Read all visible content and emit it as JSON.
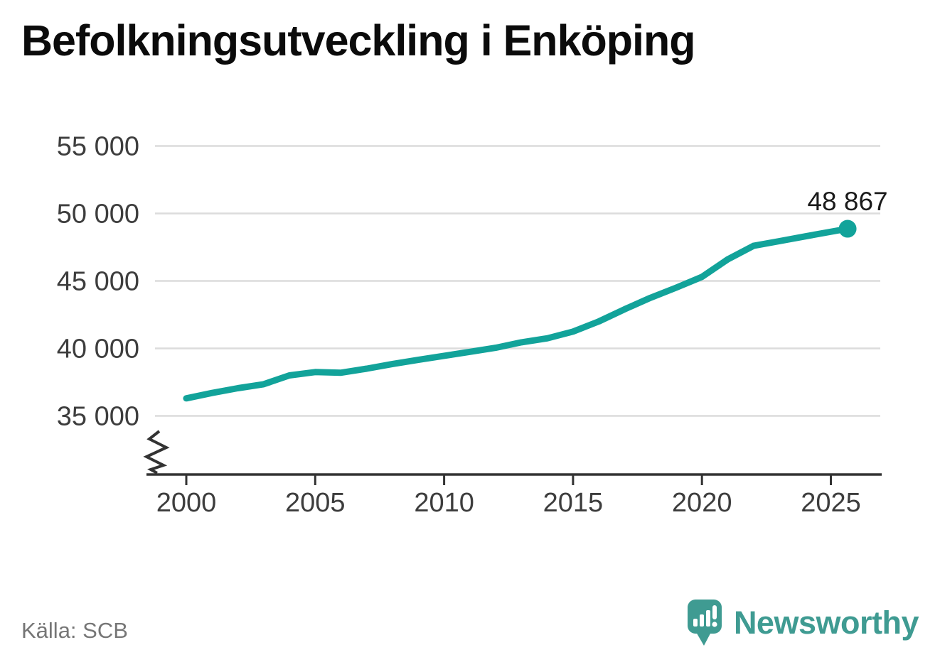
{
  "title": "Befolkningsutveckling i Enköping",
  "source": "Källa: SCB",
  "logo": {
    "text": "Newsworthy"
  },
  "colors": {
    "line": "#12a39a",
    "dot": "#12a39a",
    "logo": "#3f9b92",
    "grid": "#dcdcdc",
    "axis": "#333333",
    "tick_label": "#3d3d3d",
    "title": "#0b0b0b",
    "end_label": "#1a1a1a",
    "source_text": "#767676"
  },
  "chart_data": {
    "type": "line",
    "title": "Befolkningsutveckling i Enköping",
    "series_name": "Befolkning i Enköping",
    "x": [
      2000,
      2001,
      2002,
      2003,
      2004,
      2005,
      2006,
      2007,
      2008,
      2009,
      2010,
      2011,
      2012,
      2013,
      2014,
      2015,
      2016,
      2017,
      2018,
      2019,
      2020,
      2021,
      2022,
      2023,
      2024,
      2025.65
    ],
    "values": [
      36300,
      36700,
      37050,
      37350,
      38000,
      38250,
      38200,
      38500,
      38850,
      39150,
      39450,
      39750,
      40050,
      40450,
      40750,
      41250,
      42000,
      42900,
      43750,
      44500,
      45300,
      46600,
      47600,
      47950,
      48300,
      48867
    ],
    "end_value": 48867,
    "end_label": "48 867",
    "x_ticks": {
      "values": [
        2000,
        2005,
        2010,
        2015,
        2020,
        2025
      ],
      "labels": [
        "2000",
        "2005",
        "2010",
        "2015",
        "2020",
        "2025"
      ]
    },
    "y_ticks": {
      "values": [
        35000,
        40000,
        45000,
        50000,
        55000
      ],
      "labels": [
        "35 000",
        "40 000",
        "45 000",
        "50 000",
        "55 000"
      ]
    },
    "ylim": [
      35000,
      55000
    ],
    "axis_break": true,
    "grid": "horizontal-only",
    "legend": "none",
    "source": "Källa: SCB"
  }
}
